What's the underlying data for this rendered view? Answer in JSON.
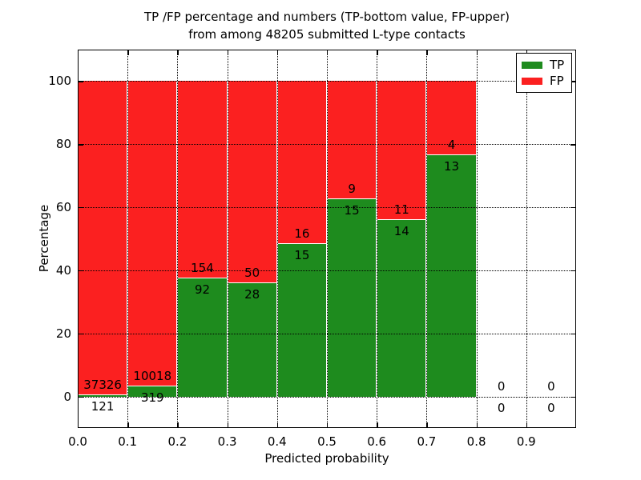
{
  "title": {
    "line1": "TP /FP percentage and numbers (TP-bottom value, FP-upper)",
    "line2": "from among 48205 submitted L-type contacts"
  },
  "legend": {
    "items": [
      {
        "label": "TP",
        "color": "#1e8b1e"
      },
      {
        "label": "FP",
        "color": "#fb2020"
      }
    ]
  },
  "axes": {
    "xlabel": "Predicted probability",
    "ylabel": "Percentage",
    "xticks": [
      "0.0",
      "0.1",
      "0.2",
      "0.3",
      "0.4",
      "0.5",
      "0.6",
      "0.7",
      "0.8",
      "0.9"
    ],
    "yticks": [
      "0",
      "20",
      "40",
      "60",
      "80",
      "100"
    ]
  },
  "chart_data": {
    "type": "bar",
    "stacked": true,
    "normalized_to_percent": true,
    "title": "TP /FP percentage and numbers (TP-bottom value, FP-upper) from among 48205 submitted L-type contacts",
    "xlabel": "Predicted probability",
    "ylabel": "Percentage",
    "xlim": [
      0.0,
      1.0
    ],
    "ylim": [
      -10,
      110
    ],
    "bin_width": 0.1,
    "grid": true,
    "legend_position": "upper right",
    "colors": {
      "TP": "#1e8b1e",
      "FP": "#fb2020"
    },
    "categories": [
      "0.0-0.1",
      "0.1-0.2",
      "0.2-0.3",
      "0.3-0.4",
      "0.4-0.5",
      "0.5-0.6",
      "0.6-0.7",
      "0.7-0.8",
      "0.8-0.9",
      "0.9-1.0"
    ],
    "series": [
      {
        "name": "TP",
        "values": [
          121,
          319,
          92,
          28,
          15,
          15,
          14,
          13,
          0,
          0
        ]
      },
      {
        "name": "FP",
        "values": [
          37326,
          10018,
          154,
          50,
          16,
          9,
          11,
          4,
          0,
          0
        ]
      }
    ],
    "bins": [
      {
        "range": [
          0.0,
          0.1
        ],
        "tp": 121,
        "fp": 37326
      },
      {
        "range": [
          0.1,
          0.2
        ],
        "tp": 319,
        "fp": 10018
      },
      {
        "range": [
          0.2,
          0.3
        ],
        "tp": 92,
        "fp": 154
      },
      {
        "range": [
          0.3,
          0.4
        ],
        "tp": 28,
        "fp": 50
      },
      {
        "range": [
          0.4,
          0.5
        ],
        "tp": 15,
        "fp": 16
      },
      {
        "range": [
          0.5,
          0.6
        ],
        "tp": 15,
        "fp": 9
      },
      {
        "range": [
          0.6,
          0.7
        ],
        "tp": 14,
        "fp": 11
      },
      {
        "range": [
          0.7,
          0.8
        ],
        "tp": 13,
        "fp": 4
      },
      {
        "range": [
          0.8,
          0.9
        ],
        "tp": 0,
        "fp": 0
      },
      {
        "range": [
          0.9,
          1.0
        ],
        "tp": 0,
        "fp": 0
      }
    ]
  }
}
